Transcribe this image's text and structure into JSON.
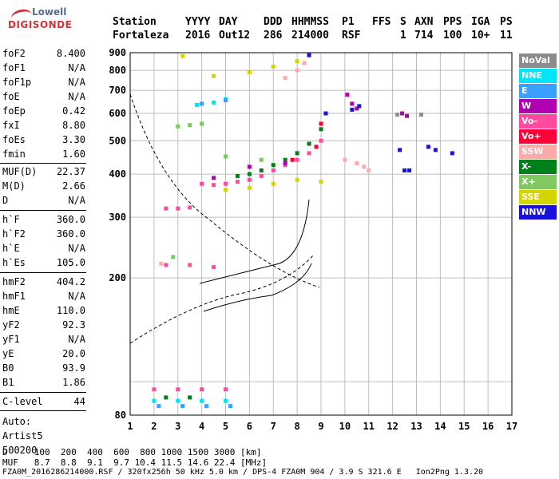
{
  "logo": {
    "line1": "Lowell",
    "line2": "DIGISONDE"
  },
  "header": {
    "labels": [
      "Station",
      "YYYY",
      "DAY",
      "DDD",
      "HHMMSS",
      "P1",
      "FFS",
      "S",
      "AXN",
      "PPS",
      "IGA",
      "PS"
    ],
    "values": [
      "Fortaleza",
      "2016",
      "Out12",
      "286",
      "214000",
      "RSF",
      "",
      "1",
      "714",
      "100",
      "10+",
      "11"
    ]
  },
  "params": {
    "group1": [
      {
        "k": "foF2",
        "v": "8.400"
      },
      {
        "k": "foF1",
        "v": "N/A"
      },
      {
        "k": "foF1p",
        "v": "N/A"
      },
      {
        "k": "foE",
        "v": "N/A"
      },
      {
        "k": "foEp",
        "v": "0.42"
      },
      {
        "k": "fxI",
        "v": "8.80"
      },
      {
        "k": "foEs",
        "v": "3.30"
      },
      {
        "k": "fmin",
        "v": "1.60"
      }
    ],
    "group2": [
      {
        "k": "MUF(D)",
        "v": "22.37"
      },
      {
        "k": "M(D)",
        "v": "2.66"
      },
      {
        "k": "D",
        "v": "N/A"
      }
    ],
    "group3": [
      {
        "k": "h`F",
        "v": "360.0"
      },
      {
        "k": "h`F2",
        "v": "360.0"
      },
      {
        "k": "h`E",
        "v": "N/A"
      },
      {
        "k": "h`Es",
        "v": "105.0"
      }
    ],
    "group4": [
      {
        "k": "hmF2",
        "v": "404.2"
      },
      {
        "k": "hmF1",
        "v": "N/A"
      },
      {
        "k": "hmE",
        "v": "110.0"
      },
      {
        "k": "yF2",
        "v": "92.3"
      },
      {
        "k": "yF1",
        "v": "N/A"
      },
      {
        "k": "yE",
        "v": "20.0"
      },
      {
        "k": "B0",
        "v": "93.9"
      },
      {
        "k": "B1",
        "v": "1.86"
      }
    ],
    "group5": [
      {
        "k": "C-level",
        "v": "44"
      }
    ],
    "auto": [
      "Auto:",
      "Artist5",
      "500200"
    ]
  },
  "bottom": {
    "line1": "D     100  200  400  600  800 1000 1500 3000 [km]",
    "line2": "MUF   8.7  8.8  9.1  9.7 10.4 11.5 14.6 22.4 [MHz]",
    "line3": "FZA0M_2016286214000.RSF / 320fx256h 50 kHz 5.0 km / DPS-4 FZA0M 904 / 3.9 S 321.6 E   Ion2Png 1.3.20"
  },
  "legend": [
    {
      "label": "NoVal",
      "color": "#8c8c8c"
    },
    {
      "label": "NNE",
      "color": "#00e5f5"
    },
    {
      "label": "E",
      "color": "#3aa0ff"
    },
    {
      "label": "W",
      "color": "#b000b0"
    },
    {
      "label": "Vo-",
      "color": "#ff4aa0"
    },
    {
      "label": "Vo+",
      "color": "#ff0038"
    },
    {
      "label": "SSW",
      "color": "#ffaaaa"
    },
    {
      "label": "X-",
      "color": "#00801a"
    },
    {
      "label": "X+",
      "color": "#80c860"
    },
    {
      "label": "SSE",
      "color": "#d4d400"
    },
    {
      "label": "NNW",
      "color": "#1a10e0"
    }
  ],
  "chart_data": {
    "type": "scatter",
    "title": "",
    "xlabel": "",
    "ylabel": "",
    "xlim": [
      1,
      17
    ],
    "ylim": [
      80,
      900
    ],
    "y_scale": "log",
    "x_ticks": [
      1,
      2,
      3,
      4,
      5,
      6,
      7,
      8,
      9,
      10,
      11,
      12,
      13,
      14,
      15,
      16,
      17
    ],
    "y_ticks": [
      80,
      200,
      300,
      400,
      500,
      600,
      700,
      800,
      900
    ],
    "grid": true,
    "legend_position": "right",
    "series": [
      {
        "name": "Vo-",
        "color": "#ff4aa0",
        "points": [
          [
            4.0,
            375
          ],
          [
            4.5,
            372
          ],
          [
            5.0,
            375
          ],
          [
            5.5,
            380
          ],
          [
            6.0,
            385
          ],
          [
            6.5,
            395
          ],
          [
            7.0,
            410
          ],
          [
            7.5,
            425
          ],
          [
            8.0,
            440
          ],
          [
            8.5,
            460
          ],
          [
            9.0,
            500
          ],
          [
            2.5,
            318
          ],
          [
            3.0,
            318
          ],
          [
            3.5,
            320
          ],
          [
            2.5,
            218
          ],
          [
            3.5,
            218
          ],
          [
            4.5,
            215
          ],
          [
            2.0,
            95
          ],
          [
            3.0,
            95
          ],
          [
            4.0,
            95
          ],
          [
            5.0,
            95
          ]
        ]
      },
      {
        "name": "X-",
        "color": "#00801a",
        "points": [
          [
            5.5,
            395
          ],
          [
            6.0,
            400
          ],
          [
            6.5,
            410
          ],
          [
            7.0,
            425
          ],
          [
            7.5,
            440
          ],
          [
            8.0,
            460
          ],
          [
            8.5,
            490
          ],
          [
            9.0,
            540
          ],
          [
            2.5,
            90
          ],
          [
            3.5,
            90
          ]
        ]
      },
      {
        "name": "SSE",
        "color": "#d4d400",
        "points": [
          [
            5.0,
            360
          ],
          [
            6.0,
            365
          ],
          [
            7.0,
            375
          ],
          [
            8.0,
            385
          ],
          [
            9.0,
            380
          ],
          [
            3.2,
            880
          ],
          [
            4.5,
            770
          ],
          [
            6.0,
            790
          ],
          [
            7.0,
            820
          ],
          [
            8.0,
            850
          ]
        ]
      },
      {
        "name": "NNE",
        "color": "#00e5f5",
        "points": [
          [
            2.0,
            88
          ],
          [
            3.0,
            88
          ],
          [
            4.0,
            88
          ],
          [
            5.0,
            88
          ],
          [
            4.5,
            645
          ],
          [
            5.0,
            660
          ],
          [
            3.8,
            635
          ]
        ]
      },
      {
        "name": "E",
        "color": "#3aa0ff",
        "points": [
          [
            2.2,
            85
          ],
          [
            3.2,
            85
          ],
          [
            4.2,
            85
          ],
          [
            5.2,
            85
          ],
          [
            4.0,
            640
          ],
          [
            5.0,
            655
          ]
        ]
      },
      {
        "name": "W",
        "color": "#b000b0",
        "points": [
          [
            4.5,
            390
          ],
          [
            6.0,
            420
          ],
          [
            7.5,
            430
          ],
          [
            10.1,
            680
          ],
          [
            10.3,
            640
          ],
          [
            10.5,
            620
          ],
          [
            12.4,
            600
          ],
          [
            12.6,
            590
          ]
        ]
      },
      {
        "name": "NNW",
        "color": "#1a10e0",
        "points": [
          [
            8.5,
            885
          ],
          [
            9.2,
            600
          ],
          [
            10.3,
            615
          ],
          [
            10.6,
            630
          ],
          [
            12.3,
            470
          ],
          [
            12.5,
            410
          ],
          [
            12.7,
            410
          ],
          [
            13.5,
            480
          ],
          [
            13.8,
            470
          ],
          [
            14.5,
            460
          ]
        ]
      },
      {
        "name": "SSW",
        "color": "#ffaaaa",
        "points": [
          [
            7.5,
            760
          ],
          [
            8.0,
            800
          ],
          [
            8.3,
            840
          ],
          [
            10.0,
            440
          ],
          [
            10.5,
            430
          ],
          [
            10.8,
            420
          ],
          [
            11.0,
            410
          ],
          [
            2.3,
            220
          ]
        ]
      },
      {
        "name": "X+",
        "color": "#80c860",
        "points": [
          [
            3.0,
            550
          ],
          [
            3.5,
            555
          ],
          [
            4.0,
            560
          ],
          [
            5.0,
            450
          ],
          [
            6.5,
            440
          ],
          [
            2.8,
            230
          ]
        ]
      },
      {
        "name": "Vo+",
        "color": "#ff0038",
        "points": [
          [
            9.0,
            560
          ],
          [
            8.8,
            480
          ],
          [
            7.8,
            440
          ]
        ]
      },
      {
        "name": "NoVal",
        "color": "#8c8c8c",
        "points": [
          [
            12.2,
            595
          ],
          [
            13.2,
            595
          ]
        ]
      }
    ]
  }
}
